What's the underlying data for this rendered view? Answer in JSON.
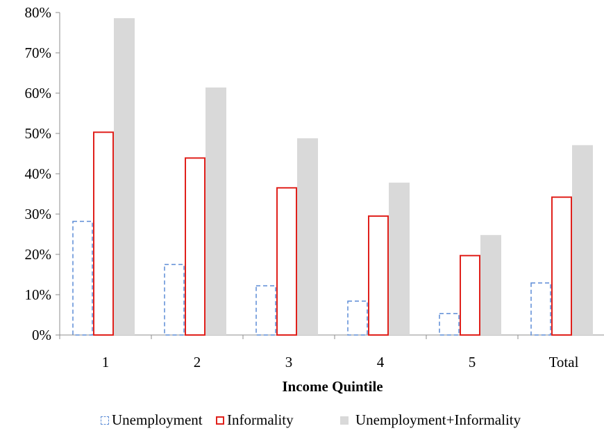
{
  "chart_data": {
    "type": "bar",
    "title": "",
    "xlabel": "Income Quintile",
    "ylabel": "",
    "categories": [
      "1",
      "2",
      "3",
      "4",
      "5",
      "Total"
    ],
    "ylim": [
      0,
      80
    ],
    "y_ticks": [
      "0%",
      "10%",
      "20%",
      "30%",
      "40%",
      "50%",
      "60%",
      "70%",
      "80%"
    ],
    "series": [
      {
        "name": "Unemployment",
        "values": [
          28.2,
          17.5,
          12.2,
          8.4,
          5.3,
          12.9
        ],
        "style": "dashed-outline",
        "color": "#5b8bd6"
      },
      {
        "name": "Informality",
        "values": [
          50.3,
          43.9,
          36.5,
          29.5,
          19.7,
          34.2
        ],
        "style": "outline",
        "color": "#e0201b"
      },
      {
        "name": "Unemployment+Informality",
        "values": [
          78.6,
          61.4,
          48.8,
          37.8,
          24.8,
          47.1
        ],
        "style": "filled",
        "color": "#d9d9d9"
      }
    ],
    "grid": false,
    "legend_position": "bottom"
  }
}
